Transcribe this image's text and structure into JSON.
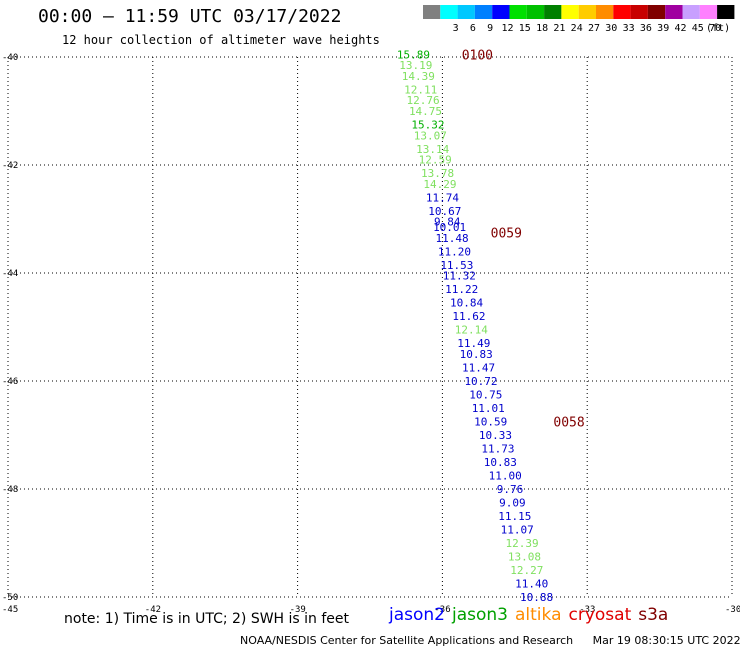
{
  "header": {
    "title": "00:00 – 11:59 UTC 03/17/2022",
    "subtitle": "12 hour collection of altimeter wave heights"
  },
  "scale": {
    "unit": "(ft)",
    "bins": [
      {
        "label": "",
        "color": "#808080"
      },
      {
        "label": "3",
        "color": "#00ffff"
      },
      {
        "label": "6",
        "color": "#00c8ff"
      },
      {
        "label": "9",
        "color": "#0080ff"
      },
      {
        "label": "12",
        "color": "#0000ff"
      },
      {
        "label": "15",
        "color": "#00e000"
      },
      {
        "label": "18",
        "color": "#00c000"
      },
      {
        "label": "21",
        "color": "#008000"
      },
      {
        "label": "24",
        "color": "#ffff00"
      },
      {
        "label": "27",
        "color": "#ffcc00"
      },
      {
        "label": "30",
        "color": "#ff8c00"
      },
      {
        "label": "33",
        "color": "#ff0000"
      },
      {
        "label": "36",
        "color": "#c80000"
      },
      {
        "label": "39",
        "color": "#800000"
      },
      {
        "label": "42",
        "color": "#a000a0"
      },
      {
        "label": "45",
        "color": "#c8a0ff"
      },
      {
        "label": "70",
        "color": "#ff80ff"
      },
      {
        "label": "",
        "color": "#000000"
      }
    ]
  },
  "footer": {
    "note": "note: 1) Time is in UTC; 2) SWH is in feet",
    "credit": "NOAA/NESDIS Center for Satellite Applications and Research",
    "timestamp": "Mar 19 08:30:15 UTC 2022"
  },
  "legend": [
    {
      "name": "jason2",
      "color": "#0000ff"
    },
    {
      "name": "jason3",
      "color": "#00a000"
    },
    {
      "name": "altika",
      "color": "#ff8c00"
    },
    {
      "name": "cryosat",
      "color": "#e00000"
    },
    {
      "name": "s3a",
      "color": "#800000"
    }
  ],
  "chart_data": {
    "type": "scatter",
    "title": "00:00 – 11:59 UTC 03/17/2022",
    "subtitle": "12 hour collection of altimeter wave heights",
    "xlabel": "",
    "ylabel": "",
    "xlim": [
      -45,
      -30
    ],
    "ylim": [
      -50,
      -40
    ],
    "x_ticks": [
      "-45",
      "-42",
      "-39",
      "-36",
      "-33",
      "-30"
    ],
    "y_ticks": [
      "-40",
      "-42",
      "-44",
      "-46",
      "-48",
      "-50"
    ],
    "x_tick_values": [
      -45,
      -42,
      -39,
      -36,
      -33,
      -30
    ],
    "y_tick_values": [
      -40,
      -42,
      -44,
      -46,
      -48,
      -50
    ],
    "grid": true,
    "marker_color": "#800000",
    "time_labels": [
      {
        "text": "0100",
        "x": -35.6,
        "y": -39.95
      },
      {
        "text": "0059",
        "x": -35.0,
        "y": -43.25
      },
      {
        "text": "0058",
        "x": -33.7,
        "y": -46.75
      }
    ],
    "points": [
      {
        "lon": -36.6,
        "lat": -39.95,
        "swh": "15.89",
        "color": "#00b000"
      },
      {
        "lon": -36.55,
        "lat": -40.15,
        "swh": "13.19",
        "color": "#80e060"
      },
      {
        "lon": -36.5,
        "lat": -40.35,
        "swh": "14.39",
        "color": "#80e060"
      },
      {
        "lon": -36.45,
        "lat": -40.6,
        "swh": "12.11",
        "color": "#80e060"
      },
      {
        "lon": -36.4,
        "lat": -40.8,
        "swh": "12.76",
        "color": "#80e060"
      },
      {
        "lon": -36.35,
        "lat": -41.0,
        "swh": "14.75",
        "color": "#80e060"
      },
      {
        "lon": -36.3,
        "lat": -41.25,
        "swh": "15.32",
        "color": "#00b000"
      },
      {
        "lon": -36.25,
        "lat": -41.45,
        "swh": "13.07",
        "color": "#80e060"
      },
      {
        "lon": -36.2,
        "lat": -41.7,
        "swh": "13.14",
        "color": "#80e060"
      },
      {
        "lon": -36.15,
        "lat": -41.9,
        "swh": "12.59",
        "color": "#80e060"
      },
      {
        "lon": -36.1,
        "lat": -42.15,
        "swh": "13.78",
        "color": "#80e060"
      },
      {
        "lon": -36.05,
        "lat": -42.35,
        "swh": "14.29",
        "color": "#80e060"
      },
      {
        "lon": -36.0,
        "lat": -42.6,
        "swh": "11.74",
        "color": "#0000cc"
      },
      {
        "lon": -35.95,
        "lat": -42.85,
        "swh": "10.67",
        "color": "#0000cc"
      },
      {
        "lon": -35.9,
        "lat": -43.05,
        "swh": "9.84",
        "color": "#0000cc"
      },
      {
        "lon": -35.85,
        "lat": -43.15,
        "swh": "10.01",
        "color": "#0000cc"
      },
      {
        "lon": -35.8,
        "lat": -43.35,
        "swh": "11.48",
        "color": "#0000cc"
      },
      {
        "lon": -35.75,
        "lat": -43.6,
        "swh": "11.20",
        "color": "#0000cc"
      },
      {
        "lon": -35.7,
        "lat": -43.85,
        "swh": "11.53",
        "color": "#0000cc"
      },
      {
        "lon": -35.65,
        "lat": -44.05,
        "swh": "11.32",
        "color": "#0000cc"
      },
      {
        "lon": -35.6,
        "lat": -44.3,
        "swh": "11.22",
        "color": "#0000cc"
      },
      {
        "lon": -35.5,
        "lat": -44.55,
        "swh": "10.84",
        "color": "#0000cc"
      },
      {
        "lon": -35.45,
        "lat": -44.8,
        "swh": "11.62",
        "color": "#0000cc"
      },
      {
        "lon": -35.4,
        "lat": -45.05,
        "swh": "12.14",
        "color": "#80e060"
      },
      {
        "lon": -35.35,
        "lat": -45.3,
        "swh": "11.49",
        "color": "#0000cc"
      },
      {
        "lon": -35.3,
        "lat": -45.5,
        "swh": "10.83",
        "color": "#0000cc"
      },
      {
        "lon": -35.25,
        "lat": -45.75,
        "swh": "11.47",
        "color": "#0000cc"
      },
      {
        "lon": -35.2,
        "lat": -46.0,
        "swh": "10.72",
        "color": "#0000cc"
      },
      {
        "lon": -35.1,
        "lat": -46.25,
        "swh": "10.75",
        "color": "#0000cc"
      },
      {
        "lon": -35.05,
        "lat": -46.5,
        "swh": "11.01",
        "color": "#0000cc"
      },
      {
        "lon": -35.0,
        "lat": -46.75,
        "swh": "10.59",
        "color": "#0000cc"
      },
      {
        "lon": -34.9,
        "lat": -47.0,
        "swh": "10.33",
        "color": "#0000cc"
      },
      {
        "lon": -34.85,
        "lat": -47.25,
        "swh": "11.73",
        "color": "#0000cc"
      },
      {
        "lon": -34.8,
        "lat": -47.5,
        "swh": "10.83",
        "color": "#0000cc"
      },
      {
        "lon": -34.7,
        "lat": -47.75,
        "swh": "11.00",
        "color": "#0000cc"
      },
      {
        "lon": -34.6,
        "lat": -48.0,
        "swh": "9.76",
        "color": "#0000cc"
      },
      {
        "lon": -34.55,
        "lat": -48.25,
        "swh": "9.09",
        "color": "#0000cc"
      },
      {
        "lon": -34.5,
        "lat": -48.5,
        "swh": "11.15",
        "color": "#0000cc"
      },
      {
        "lon": -34.45,
        "lat": -48.75,
        "swh": "11.07",
        "color": "#0000cc"
      },
      {
        "lon": -34.35,
        "lat": -49.0,
        "swh": "12.39",
        "color": "#80e060"
      },
      {
        "lon": -34.3,
        "lat": -49.25,
        "swh": "13.08",
        "color": "#80e060"
      },
      {
        "lon": -34.25,
        "lat": -49.5,
        "swh": "12.27",
        "color": "#80e060"
      },
      {
        "lon": -34.15,
        "lat": -49.75,
        "swh": "11.40",
        "color": "#0000cc"
      },
      {
        "lon": -34.05,
        "lat": -50.0,
        "swh": "10.88",
        "color": "#0000cc"
      }
    ]
  }
}
